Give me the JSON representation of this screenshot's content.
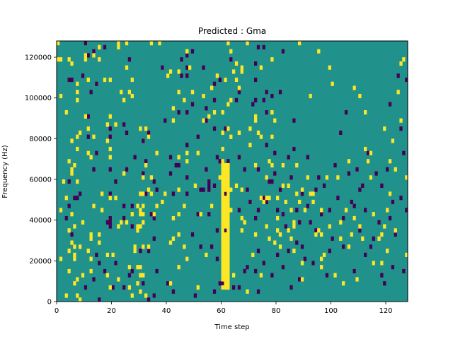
{
  "chart_data": {
    "type": "heatmap",
    "title": "Predicted : Gma",
    "xlabel": "Time step",
    "ylabel": "Frequency (Hz)",
    "xlim": [
      0,
      128
    ],
    "ylim": [
      0,
      128000
    ],
    "x_ticks": [
      0,
      20,
      40,
      60,
      80,
      100,
      120
    ],
    "y_ticks": [
      0,
      20000,
      40000,
      60000,
      80000,
      100000,
      120000
    ],
    "x_tick_labels": [
      "0",
      "20",
      "40",
      "60",
      "80",
      "100",
      "120"
    ],
    "y_tick_labels": [
      "0",
      "20000",
      "40000",
      "60000",
      "80000",
      "100000",
      "120000"
    ],
    "frequency_bins": 64,
    "bin_width_hz": 2000,
    "colormap": "viridis",
    "value_levels": [
      -1,
      0,
      1
    ],
    "colors": {
      "low": "#440154",
      "mid": "#21918c",
      "high": "#fde725"
    },
    "grid": false,
    "legend": "none",
    "background_value": 0,
    "cells_high": [
      [
        80,
        40000
      ],
      [
        80,
        34000
      ],
      [
        80,
        50000
      ],
      [
        81,
        26000
      ],
      [
        81,
        32000
      ],
      [
        82,
        56000
      ],
      [
        82,
        66000
      ],
      [
        83,
        48000
      ],
      [
        84,
        56000
      ],
      [
        84,
        34000
      ],
      [
        85,
        44000
      ],
      [
        85,
        30000
      ],
      [
        86,
        24000
      ],
      [
        86,
        36000
      ],
      [
        86,
        38000
      ],
      [
        87,
        52000
      ],
      [
        87,
        66000
      ],
      [
        88,
        48000
      ],
      [
        88,
        126000
      ],
      [
        89,
        18000
      ],
      [
        89,
        10000
      ],
      [
        89,
        54000
      ],
      [
        90,
        44000
      ],
      [
        91,
        60000
      ],
      [
        92,
        52000
      ],
      [
        92,
        100000
      ],
      [
        93,
        52000
      ],
      [
        93,
        48000
      ],
      [
        94,
        32000
      ],
      [
        95,
        34000
      ],
      [
        95,
        122000
      ],
      [
        96,
        16000
      ],
      [
        96,
        44000
      ],
      [
        96,
        32000
      ],
      [
        96,
        20000
      ],
      [
        97,
        22000
      ],
      [
        98,
        60000
      ],
      [
        99,
        36000
      ],
      [
        99,
        114000
      ],
      [
        100,
        106000
      ],
      [
        101,
        12000
      ],
      [
        102,
        60000
      ],
      [
        103,
        38000
      ],
      [
        103,
        30000
      ],
      [
        104,
        8000
      ],
      [
        105,
        44000
      ],
      [
        106,
        26000
      ],
      [
        106,
        68000
      ],
      [
        107,
        32000
      ],
      [
        108,
        104000
      ],
      [
        108,
        40000
      ],
      [
        109,
        10000
      ],
      [
        110,
        36000
      ],
      [
        110,
        100000
      ],
      [
        111,
        30000
      ],
      [
        112,
        92000
      ],
      [
        112,
        74000
      ],
      [
        113,
        68000
      ],
      [
        114,
        72000
      ],
      [
        114,
        60000
      ],
      [
        115,
        42000
      ],
      [
        115,
        18000
      ],
      [
        117,
        30000
      ],
      [
        118,
        32000
      ],
      [
        118,
        18000
      ],
      [
        119,
        36000
      ],
      [
        119,
        84000
      ],
      [
        120,
        44000
      ],
      [
        120,
        24000
      ],
      [
        121,
        52000
      ],
      [
        121,
        68000
      ],
      [
        122,
        78000
      ],
      [
        123,
        34000
      ],
      [
        123,
        64000
      ],
      [
        124,
        102000
      ],
      [
        125,
        88000
      ],
      [
        125,
        116000
      ],
      [
        126,
        118000
      ],
      [
        127,
        22000
      ],
      [
        127,
        60000
      ]
    ],
    "cells_low": [
      [
        80,
        44000
      ],
      [
        80,
        22000
      ],
      [
        81,
        54000
      ],
      [
        81,
        102000
      ],
      [
        82,
        122000
      ],
      [
        82,
        42000
      ],
      [
        82,
        16000
      ],
      [
        83,
        36000
      ],
      [
        84,
        24000
      ],
      [
        84,
        70000
      ],
      [
        85,
        60000
      ],
      [
        85,
        6000
      ],
      [
        86,
        88000
      ],
      [
        86,
        74000
      ],
      [
        87,
        44000
      ],
      [
        87,
        28000
      ],
      [
        88,
        38000
      ],
      [
        88,
        10000
      ],
      [
        89,
        52000
      ],
      [
        89,
        26000
      ],
      [
        90,
        20000
      ],
      [
        91,
        70000
      ],
      [
        91,
        46000
      ],
      [
        92,
        38000
      ],
      [
        93,
        18000
      ],
      [
        94,
        54000
      ],
      [
        94,
        34000
      ],
      [
        95,
        60000
      ],
      [
        96,
        42000
      ],
      [
        97,
        56000
      ],
      [
        98,
        12000
      ],
      [
        99,
        44000
      ],
      [
        99,
        24000
      ],
      [
        100,
        30000
      ],
      [
        101,
        66000
      ],
      [
        102,
        50000
      ],
      [
        103,
        82000
      ],
      [
        104,
        26000
      ],
      [
        104,
        40000
      ],
      [
        105,
        92000
      ],
      [
        106,
        62000
      ],
      [
        107,
        48000
      ],
      [
        108,
        46000
      ],
      [
        108,
        14000
      ],
      [
        109,
        64000
      ],
      [
        110,
        54000
      ],
      [
        110,
        34000
      ],
      [
        111,
        56000
      ],
      [
        112,
        44000
      ],
      [
        112,
        22000
      ],
      [
        113,
        72000
      ],
      [
        114,
        26000
      ],
      [
        115,
        30000
      ],
      [
        116,
        62000
      ],
      [
        117,
        38000
      ],
      [
        118,
        12000
      ],
      [
        118,
        56000
      ],
      [
        119,
        8000
      ],
      [
        120,
        64000
      ],
      [
        121,
        40000
      ],
      [
        121,
        96000
      ],
      [
        122,
        48000
      ],
      [
        122,
        16000
      ],
      [
        123,
        32000
      ],
      [
        124,
        110000
      ],
      [
        125,
        84000
      ],
      [
        125,
        50000
      ],
      [
        126,
        14000
      ],
      [
        126,
        72000
      ],
      [
        127,
        108000
      ],
      [
        127,
        44000
      ]
    ]
  }
}
